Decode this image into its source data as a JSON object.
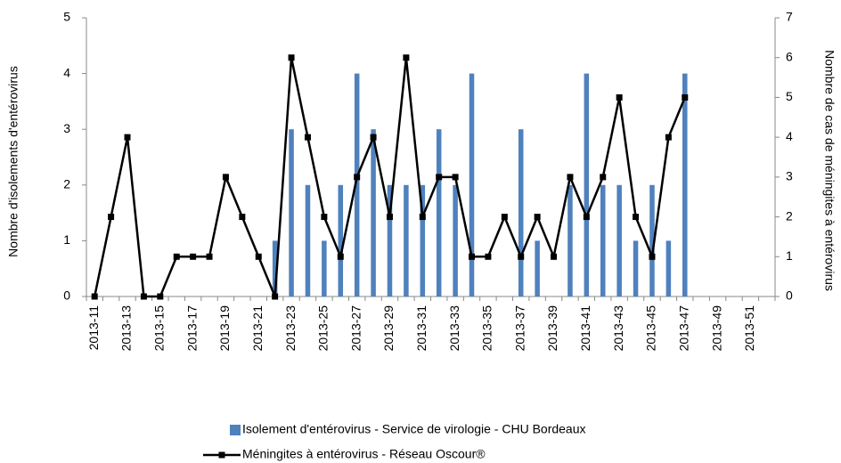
{
  "chart_data": {
    "type": "bar-line",
    "categories": [
      "2013-11",
      null,
      "2013-13",
      null,
      "2013-15",
      null,
      "2013-17",
      null,
      "2013-19",
      null,
      "2013-21",
      null,
      "2013-23",
      null,
      "2013-25",
      null,
      "2013-27",
      null,
      "2013-29",
      null,
      "2013-31",
      null,
      "2013-33",
      null,
      "2013-35",
      null,
      "2013-37",
      null,
      "2013-39",
      null,
      "2013-41",
      null,
      "2013-43",
      null,
      "2013-45",
      null,
      "2013-47",
      null,
      "2013-49",
      null,
      "2013-51",
      null
    ],
    "y_label": "Nombre d'isolements d'entérovirus",
    "y2_label": "Nombre de cas de méningites à entérovirus",
    "ylim": [
      0,
      5
    ],
    "yticks": [
      0,
      1,
      2,
      3,
      4,
      5
    ],
    "y2lim": [
      0,
      7
    ],
    "y2ticks": [
      0,
      1,
      2,
      3,
      4,
      5,
      6,
      7
    ],
    "series": [
      {
        "name": "Isolement d'entérovirus - Service de virologie - CHU Bordeaux",
        "type": "bar",
        "color": "#4f81bd",
        "values": [
          0,
          0,
          0,
          0,
          0,
          0,
          0,
          0,
          0,
          0,
          0,
          1,
          3,
          2,
          1,
          2,
          4,
          3,
          2,
          2,
          2,
          3,
          2,
          4,
          0,
          0,
          3,
          1,
          0,
          2,
          4,
          2,
          2,
          1,
          2,
          1,
          4,
          null,
          null,
          null,
          null,
          null
        ]
      },
      {
        "name": "Méningites à entérovirus - Réseau Oscour®",
        "type": "line",
        "axis": "y2",
        "color": "#000000",
        "values": [
          0,
          2,
          4,
          0,
          0,
          1,
          1,
          1,
          3,
          2,
          1,
          0,
          6,
          4,
          2,
          1,
          3,
          4,
          2,
          6,
          2,
          3,
          3,
          1,
          1,
          2,
          1,
          2,
          1,
          3,
          2,
          3,
          5,
          2,
          1,
          4,
          5,
          null,
          null,
          null,
          null,
          null
        ]
      }
    ]
  }
}
